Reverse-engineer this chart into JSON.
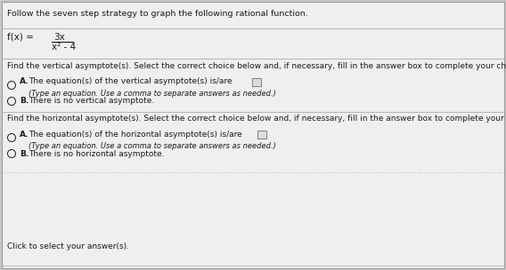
{
  "bg_color": "#c8c8c8",
  "panel_color": "#efefef",
  "border_color": "#999999",
  "title_text": "Follow the seven step strategy to graph the following rational function.",
  "numerator": "3x",
  "denominator": "x² - 4",
  "section1_header": "Find the vertical asymptote(s). Select the correct choice below and, if necessary, fill in the answer box to complete your choice.",
  "v_optionA_main": "The equation(s) of the vertical asymptote(s) is/are",
  "v_optionA_sub": "(Type an equation. Use a comma to separate answers as needed.)",
  "v_optionB": "There is no vertical asymptote.",
  "section2_header": "Find the horizontal asymptote(s). Select the correct choice below and, if necessary, fill in the answer box to complete your choice.",
  "h_optionA_main": "The equation(s) of the horizontal asymptote(s) is/are",
  "h_optionA_sub": "(Type an equation. Use a comma to separate answers as needed.)",
  "h_optionB": "There is no horizontal asymptote.",
  "footer": "Click to select your answer(s).",
  "text_color": "#1a1a1a",
  "font_size_title": 6.8,
  "font_size_func": 7.5,
  "font_size_section": 6.5,
  "font_size_option": 6.5,
  "font_size_sub": 6.0
}
